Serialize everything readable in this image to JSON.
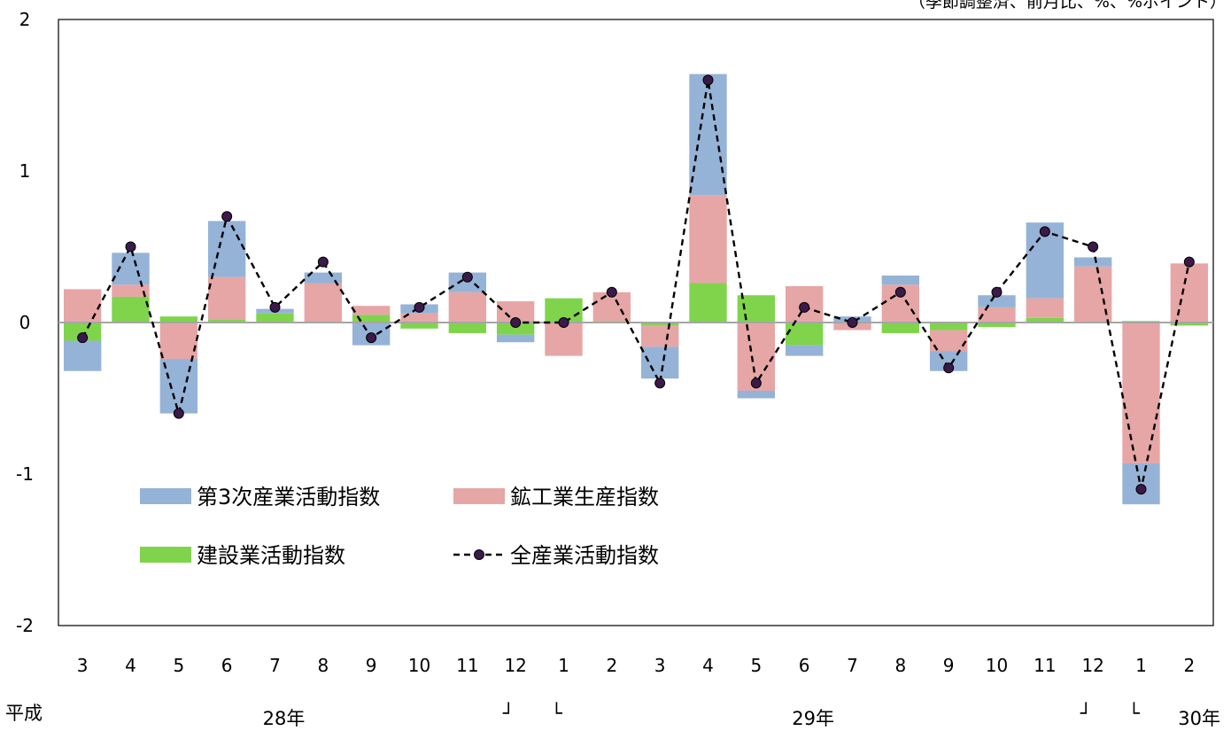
{
  "chart_data": {
    "type": "bar",
    "stacked": true,
    "title": "",
    "note": "（季節調整済、前月比、%、%ポイント）",
    "xlabel": "",
    "ylabel": "",
    "ylim": [
      -2,
      2
    ],
    "y_ticks": [
      "2",
      "1",
      "0",
      "-1",
      "-2"
    ],
    "categories": [
      "3",
      "4",
      "5",
      "6",
      "7",
      "8",
      "9",
      "10",
      "11",
      "12",
      "1",
      "2",
      "3",
      "4",
      "5",
      "6",
      "7",
      "8",
      "9",
      "10",
      "11",
      "12",
      "1",
      "2"
    ],
    "era_label": "平成",
    "year_labels": [
      {
        "text": "28年",
        "at_index": 4
      },
      {
        "text": "29年",
        "at_index": 15
      },
      {
        "text": "30年",
        "at_index": 23
      }
    ],
    "year_brackets": [
      {
        "text": "┘",
        "at_index": 9
      },
      {
        "text": "└",
        "at_index": 10
      },
      {
        "text": "┘",
        "at_index": 21
      },
      {
        "text": "└",
        "at_index": 22
      }
    ],
    "series": [
      {
        "name": "第3次産業活動指数",
        "kind": "bar",
        "color": "#95b3d7",
        "values": [
          -0.2,
          0.21,
          -0.36,
          0.37,
          0.03,
          0.07,
          -0.15,
          0.06,
          0.13,
          -0.05,
          0.0,
          0.0,
          -0.21,
          0.8,
          -0.05,
          -0.07,
          0.04,
          0.06,
          -0.13,
          0.08,
          0.5,
          0.06,
          -0.27,
          0.0
        ]
      },
      {
        "name": "鉱工業生産指数",
        "kind": "bar",
        "color": "#e6a6a6",
        "values": [
          0.22,
          0.08,
          -0.24,
          0.28,
          0.0,
          0.26,
          0.06,
          0.06,
          0.2,
          0.14,
          -0.22,
          0.19,
          -0.14,
          0.58,
          -0.45,
          0.24,
          -0.05,
          0.25,
          -0.14,
          0.1,
          0.13,
          0.37,
          -0.93,
          0.39
        ]
      },
      {
        "name": "建設業活動指数",
        "kind": "bar",
        "color": "#7fd44c",
        "values": [
          -0.12,
          0.17,
          0.04,
          0.02,
          0.06,
          0.0,
          0.05,
          -0.04,
          -0.07,
          -0.08,
          0.16,
          0.01,
          -0.02,
          0.26,
          0.18,
          -0.15,
          0.0,
          -0.07,
          -0.05,
          -0.03,
          0.03,
          0.0,
          0.01,
          -0.02
        ]
      },
      {
        "name": "全産業活動指数",
        "kind": "line",
        "color": "#000000",
        "marker_color": "#3b1a4a",
        "values": [
          -0.1,
          0.5,
          -0.6,
          0.7,
          0.1,
          0.4,
          -0.1,
          0.1,
          0.3,
          0.0,
          0.0,
          0.2,
          -0.4,
          1.6,
          -0.4,
          0.1,
          0.0,
          0.2,
          -0.3,
          0.2,
          0.6,
          0.5,
          -1.1,
          0.4
        ]
      }
    ],
    "grid": false,
    "legend_position": "lower-left"
  }
}
